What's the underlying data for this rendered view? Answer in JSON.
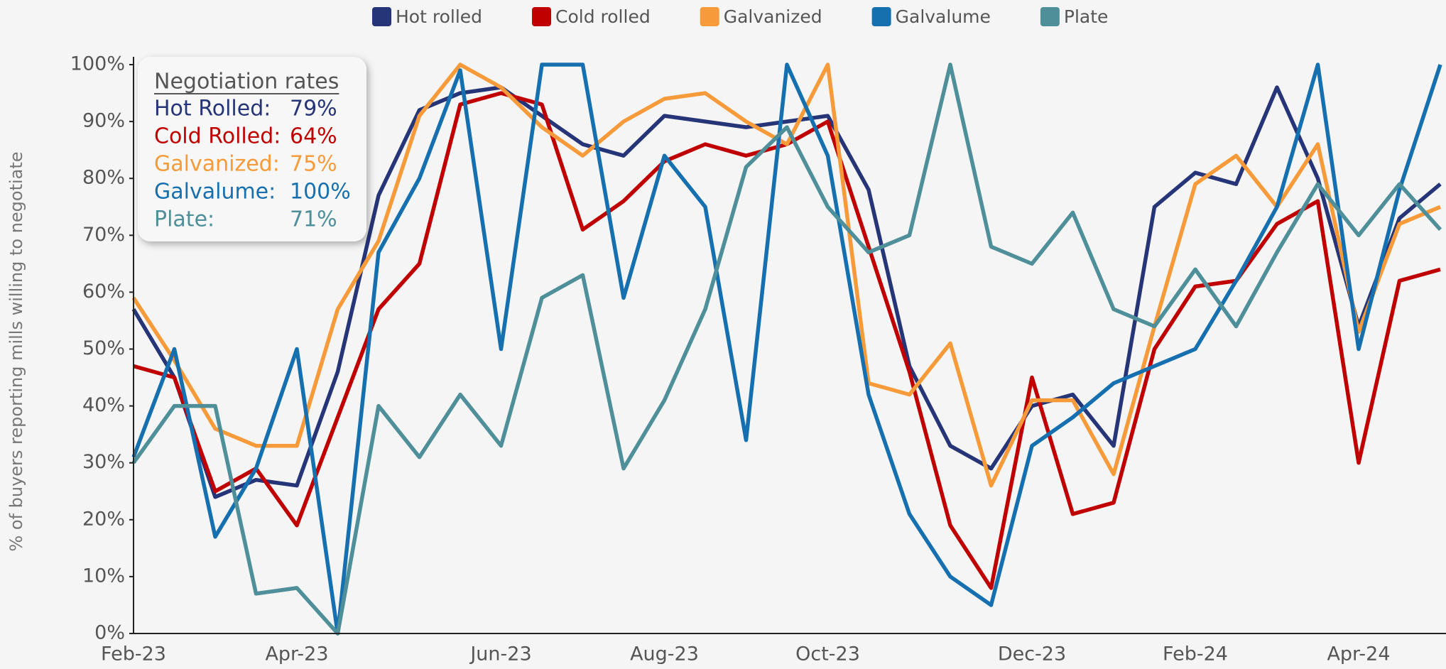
{
  "chart_data": {
    "type": "line",
    "y_label": "% of buyers reporting mills willing to negotiate",
    "categories": [
      "Feb-23",
      null,
      null,
      null,
      "Apr-23",
      null,
      null,
      null,
      null,
      "Jun-23",
      null,
      null,
      null,
      "Aug-23",
      null,
      null,
      null,
      "Oct-23",
      null,
      null,
      null,
      null,
      "Dec-23",
      null,
      null,
      null,
      "Feb-24",
      null,
      null,
      null,
      "Apr-24",
      null,
      null
    ],
    "series": [
      {
        "name": "Hot rolled",
        "color": "#263478",
        "values": [
          57,
          45,
          24,
          27,
          26,
          46,
          77,
          92,
          95,
          96,
          91,
          86,
          84,
          91,
          90,
          89,
          90,
          91,
          78,
          47,
          33,
          29,
          40,
          42,
          33,
          75,
          81,
          79,
          96,
          80,
          54,
          73,
          79
        ]
      },
      {
        "name": "Cold rolled",
        "color": "#c00000",
        "values": [
          47,
          45,
          25,
          29,
          19,
          38,
          57,
          65,
          93,
          95,
          93,
          71,
          76,
          83,
          86,
          84,
          86,
          90,
          68,
          46,
          19,
          8,
          45,
          21,
          23,
          50,
          61,
          62,
          72,
          76,
          30,
          62,
          64
        ]
      },
      {
        "name": "Galvanized",
        "color": "#f79b3a",
        "values": [
          59,
          48,
          36,
          33,
          33,
          57,
          69,
          91,
          100,
          96,
          89,
          84,
          90,
          94,
          95,
          90,
          86,
          100,
          44,
          42,
          51,
          26,
          41,
          41,
          28,
          54,
          79,
          84,
          75,
          86,
          53,
          72,
          75
        ]
      },
      {
        "name": "Galvalume",
        "color": "#1670b0",
        "values": [
          31,
          50,
          17,
          29,
          50,
          0,
          67,
          80,
          99,
          50,
          100,
          100,
          59,
          84,
          75,
          34,
          100,
          84,
          42,
          21,
          10,
          5,
          33,
          38,
          44,
          47,
          50,
          62,
          75,
          100,
          50,
          78,
          100
        ]
      },
      {
        "name": "Plate",
        "color": "#4e8f9a",
        "values": [
          30,
          40,
          40,
          7,
          8,
          0,
          40,
          31,
          42,
          33,
          59,
          63,
          29,
          41,
          57,
          82,
          89,
          75,
          67,
          70,
          100,
          68,
          65,
          74,
          57,
          54,
          64,
          54,
          67,
          79,
          70,
          79,
          71
        ]
      }
    ],
    "ylim": [
      0,
      100
    ],
    "yticks": [
      {
        "value": 0,
        "label": "0%"
      },
      {
        "value": 10,
        "label": "10%"
      },
      {
        "value": 20,
        "label": "20%"
      },
      {
        "value": 30,
        "label": "30%"
      },
      {
        "value": 40,
        "label": "40%"
      },
      {
        "value": 50,
        "label": "50%"
      },
      {
        "value": 60,
        "label": "60%"
      },
      {
        "value": 70,
        "label": "70%"
      },
      {
        "value": 80,
        "label": "80%"
      },
      {
        "value": 90,
        "label": "90%"
      },
      {
        "value": 100,
        "label": "100%"
      }
    ],
    "legend": "top",
    "annotation": {
      "title": "Negotiation rates",
      "rows": [
        [
          "Hot Rolled:",
          "79%"
        ],
        [
          "Cold Rolled:",
          "64%"
        ],
        [
          "Galvanized:",
          "75%"
        ],
        [
          "Galvalume:",
          "100%"
        ],
        [
          "Plate:",
          "71%"
        ]
      ]
    }
  }
}
